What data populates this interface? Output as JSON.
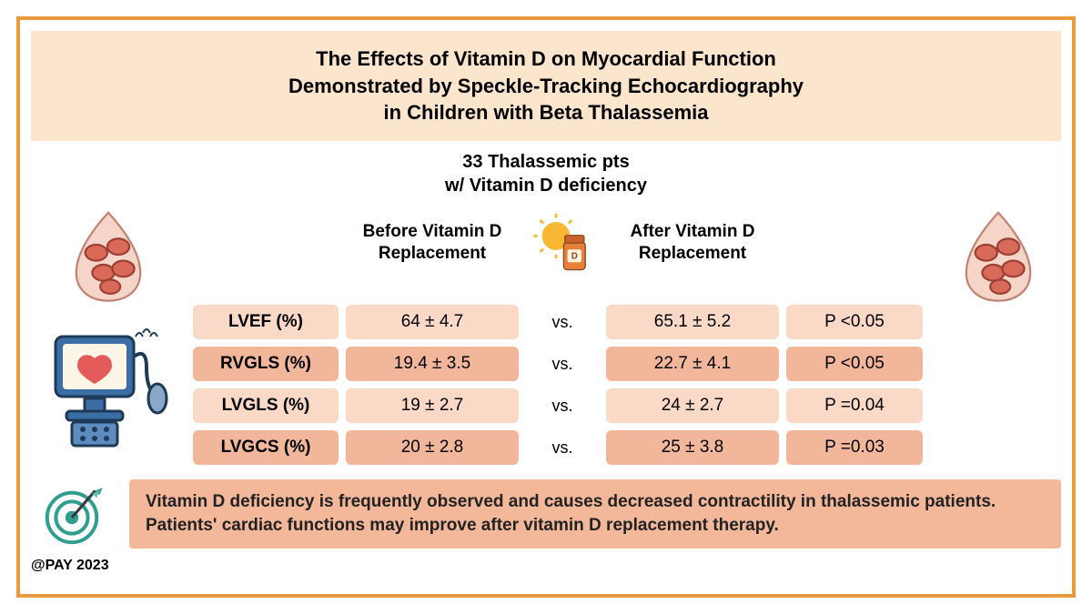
{
  "title": {
    "line1": "The Effects of Vitamin D on Myocardial Function",
    "line2": "Demonstrated by Speckle-Tracking Echocardiography",
    "line3": "in Children with Beta Thalassemia"
  },
  "subhead": {
    "line1": "33 Thalassemic pts",
    "line2": "w/ Vitamin D deficiency"
  },
  "columns": {
    "before": "Before Vitamin D Replacement",
    "after": "After Vitamin D Replacement"
  },
  "rows": [
    {
      "label": "LVEF (%)",
      "before": "64 ± 4.7",
      "after": "65.1 ± 5.2",
      "p": "P <0.05",
      "shade": "light"
    },
    {
      "label": "RVGLS (%)",
      "before": "19.4 ± 3.5",
      "after": "22.7 ± 4.1",
      "p": "P <0.05",
      "shade": "dark"
    },
    {
      "label": "LVGLS (%)",
      "before": "19 ± 2.7",
      "after": "24 ± 2.7",
      "p": "P =0.04",
      "shade": "light"
    },
    {
      "label": "LVGCS (%)",
      "before": "20 ± 2.8",
      "after": "25 ± 3.8",
      "p": "P =0.03",
      "shade": "dark"
    }
  ],
  "vs_text": "vs.",
  "colors": {
    "light_row": "#fad9c7",
    "dark_row": "#f2b79a",
    "title_band": "#fce5cd",
    "border": "#e89b3c",
    "conclusion_bg": "#f3b79a"
  },
  "conclusion": "Vitamin D deficiency is frequently observed and causes decreased contractility in thalassemic patients. Patients' cardiac functions may improve after vitamin D replacement therapy.",
  "attribution": "@PAY 2023"
}
